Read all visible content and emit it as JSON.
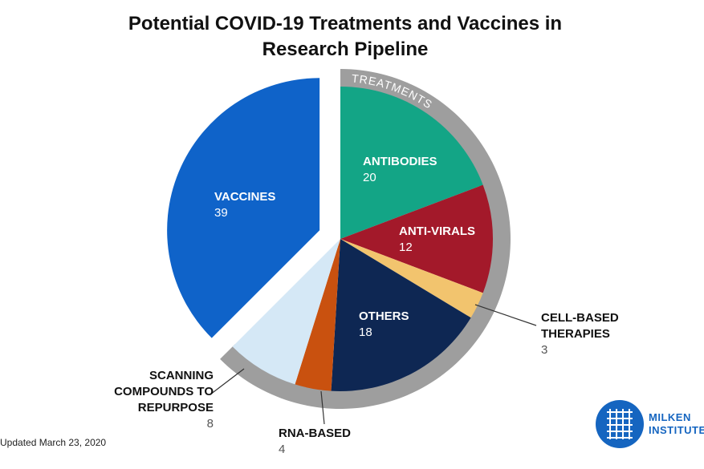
{
  "chart_data": {
    "type": "pie",
    "title": "Potential COVID-19 Treatments and Vaccines in Research Pipeline",
    "categories": [
      "ANTIBODIES",
      "ANTI-VIRALS",
      "CELL-BASED THERAPIES",
      "OTHERS",
      "RNA-BASED",
      "SCANNING COMPOUNDS TO REPURPOSE",
      "VACCINES"
    ],
    "values": [
      20,
      12,
      3,
      18,
      4,
      8,
      39
    ],
    "colors": [
      "#13a586",
      "#a3192a",
      "#f2c46e",
      "#0e2753",
      "#c9510f",
      "#d5e8f6",
      "#0f63c9"
    ],
    "group_label": "TREATMENTS",
    "note": "Updated March 23, 2020"
  },
  "logo": "MILKEN INSTITUTE"
}
